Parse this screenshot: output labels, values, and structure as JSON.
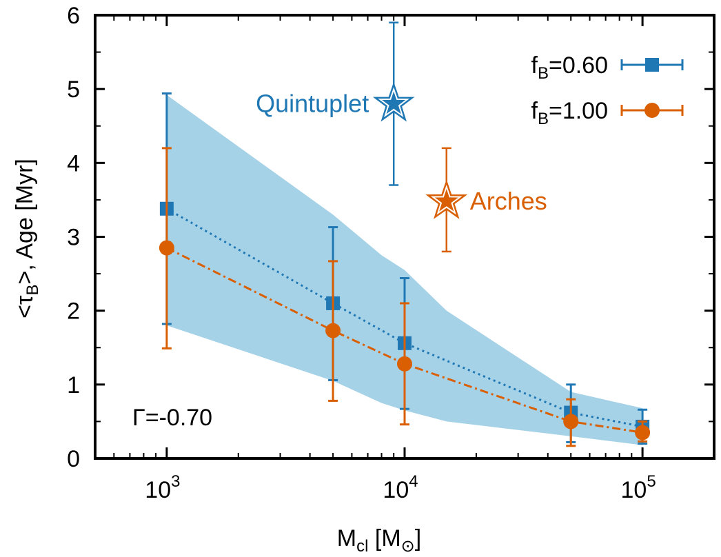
{
  "chart_data": {
    "type": "line",
    "xlabel": {
      "main": "M",
      "sub": "cl",
      "unit_open": " [M",
      "unit_sub": "⊙",
      "unit_close": "]"
    },
    "ylabel": {
      "pre": "<τ",
      "sub": "B",
      "post": ">, Age [Myr]"
    },
    "xscale": "log",
    "xlim": [
      500,
      200000
    ],
    "ylim": [
      0,
      6
    ],
    "xticks": [
      {
        "value": 1000,
        "base": "10",
        "exp": "3"
      },
      {
        "value": 10000,
        "base": "10",
        "exp": "4"
      },
      {
        "value": 100000,
        "base": "10",
        "exp": "5"
      }
    ],
    "yticks": [
      "0",
      "1",
      "2",
      "3",
      "4",
      "5",
      "6"
    ],
    "grid": false,
    "legend_position": "top-right",
    "series": [
      {
        "name_main": "f",
        "name_sub": "B",
        "name_rest": "=0.60",
        "color": "#1f78b4",
        "marker": "square",
        "line": "dotted",
        "x": [
          1000,
          5000,
          10000,
          50000,
          100000
        ],
        "y": [
          3.38,
          2.1,
          1.56,
          0.62,
          0.43
        ],
        "yerr_low": [
          1.82,
          1.06,
          0.67,
          0.22,
          0.2
        ],
        "yerr_high": [
          4.94,
          3.13,
          2.44,
          1.0,
          0.66
        ]
      },
      {
        "name_main": "f",
        "name_sub": "B",
        "name_rest": "=1.00",
        "color": "#d95f02",
        "marker": "circle",
        "line": "dash-dot",
        "x": [
          1000,
          5000,
          10000,
          50000,
          100000
        ],
        "y": [
          2.85,
          1.73,
          1.28,
          0.5,
          0.35
        ],
        "yerr_low": [
          1.49,
          0.78,
          0.46,
          0.17,
          0.23
        ],
        "yerr_high": [
          4.2,
          2.67,
          2.1,
          0.8,
          0.5
        ]
      }
    ],
    "band": {
      "color": "#a6d2e8",
      "x": [
        1000,
        5000,
        8000,
        10000,
        15000,
        50000,
        100000
      ],
      "y_upper": [
        4.92,
        3.3,
        2.75,
        2.55,
        2.0,
        0.9,
        0.68
      ],
      "y_lower": [
        1.8,
        1.05,
        0.75,
        0.65,
        0.5,
        0.3,
        0.18
      ]
    },
    "clusters": [
      {
        "label": "Quintuplet",
        "x": 9000,
        "y": 4.8,
        "yerr_low": 3.7,
        "yerr_high": 5.9,
        "color": "#1f78b4",
        "side": "left"
      },
      {
        "label": "Arches",
        "x": 15000,
        "y": 3.48,
        "yerr_low": 2.8,
        "yerr_high": 4.2,
        "color": "#d95f02",
        "side": "right"
      }
    ],
    "annotation": "Γ=-0.70"
  }
}
